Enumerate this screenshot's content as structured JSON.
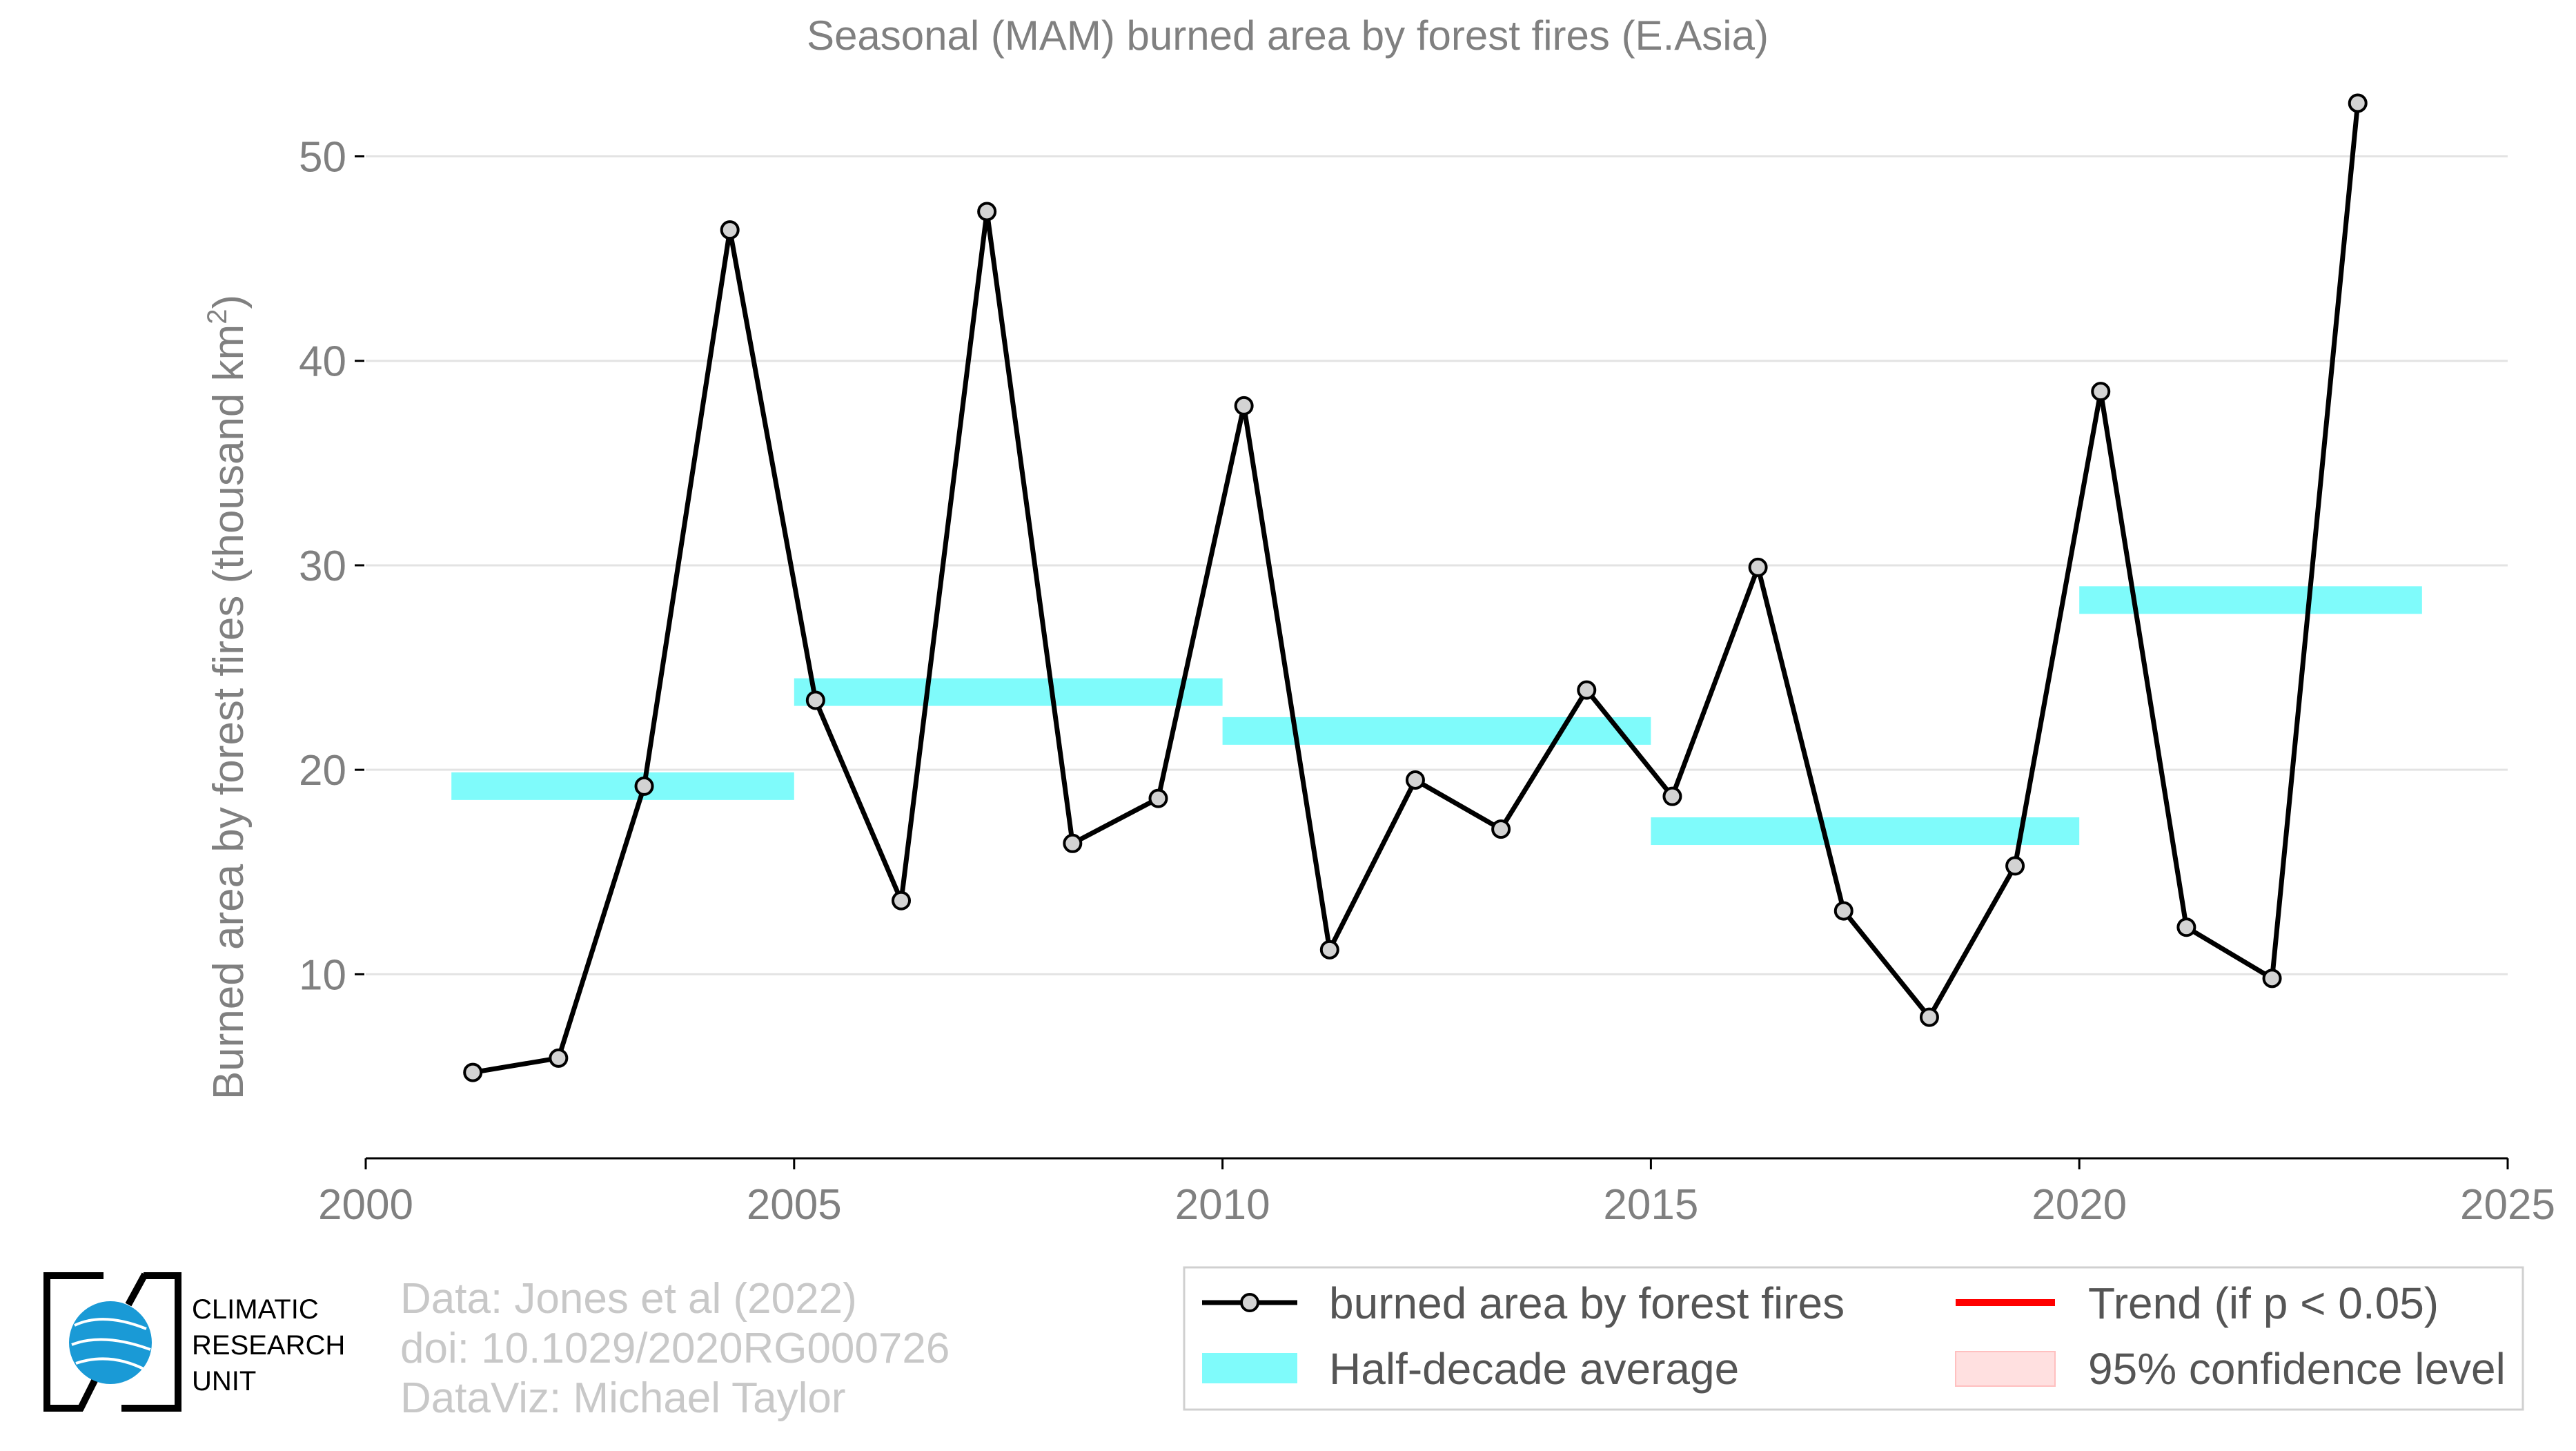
{
  "chart_data": {
    "type": "line",
    "title": "Seasonal (MAM) burned area by forest fires (E.Asia)",
    "ylabel": "Burned area by forest fires (thousand km",
    "ylabel_sup": "2",
    "ylabel_close": ")",
    "xlim": [
      2000,
      2025
    ],
    "ylim": [
      1,
      54
    ],
    "x_ticks": [
      2000,
      2005,
      2010,
      2015,
      2020,
      2025
    ],
    "y_ticks": [
      10,
      20,
      30,
      40,
      50
    ],
    "grid": "horizontal",
    "series": [
      {
        "name": "burned area by forest fires",
        "color": "#000000",
        "marker_fill": "#d3d3d3",
        "x": [
          2001.25,
          2002.25,
          2003.25,
          2004.25,
          2005.25,
          2006.25,
          2007.25,
          2008.25,
          2009.25,
          2010.25,
          2011.25,
          2012.25,
          2013.25,
          2014.25,
          2015.25,
          2016.25,
          2017.25,
          2018.25,
          2019.25,
          2020.25,
          2021.25,
          2022.25,
          2023.25
        ],
        "values": [
          5.2,
          5.9,
          19.2,
          46.4,
          23.4,
          13.6,
          47.3,
          16.4,
          18.6,
          37.8,
          11.2,
          19.5,
          17.1,
          23.9,
          18.7,
          29.9,
          13.1,
          7.9,
          15.3,
          38.5,
          12.3,
          9.8,
          52.6
        ]
      },
      {
        "name": "Half-decade average",
        "type": "band",
        "color": "#7ffbfb",
        "segments": [
          {
            "x0": 2001,
            "x1": 2005,
            "value": 19.2
          },
          {
            "x0": 2005,
            "x1": 2010,
            "value": 23.8
          },
          {
            "x0": 2010,
            "x1": 2015,
            "value": 21.9
          },
          {
            "x0": 2015,
            "x1": 2020,
            "value": 17.0
          },
          {
            "x0": 2020,
            "x1": 2024,
            "value": 28.3
          }
        ]
      }
    ],
    "legend": {
      "position": "bottom-right",
      "items": [
        {
          "label": "burned area by forest fires",
          "kind": "line-marker",
          "color": "#000000"
        },
        {
          "label": "Trend (if p < 0.05)",
          "kind": "line",
          "color": "#ff0000"
        },
        {
          "label": "Half-decade average",
          "kind": "band",
          "color": "#7ffbfb"
        },
        {
          "label": "95% confidence level",
          "kind": "fill",
          "color": "#ffe0e0"
        }
      ]
    }
  },
  "credits": [
    "Data: Jones et al (2022)",
    "doi: 10.1029/2020RG000726",
    "DataViz: Michael Taylor"
  ],
  "logo": {
    "lines": [
      "CLIMATIC",
      "RESEARCH",
      "UNIT"
    ],
    "color": "#1a9ad6"
  }
}
